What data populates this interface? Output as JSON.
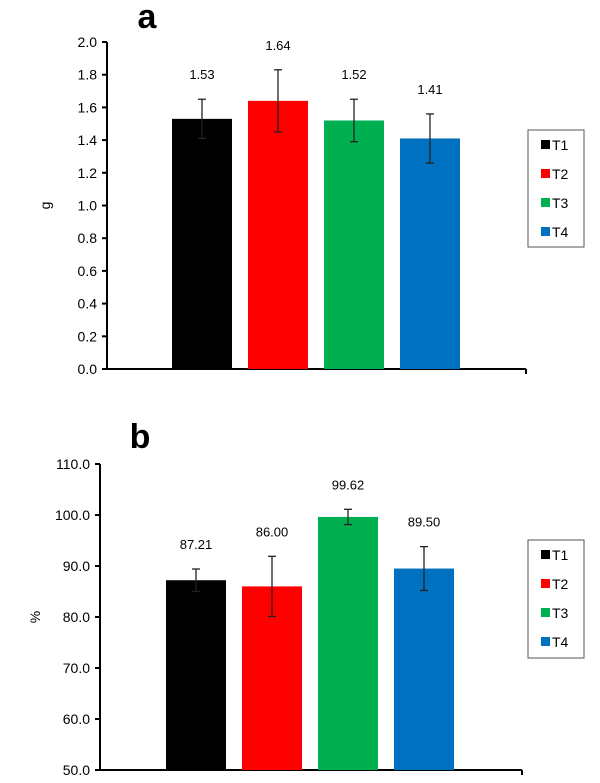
{
  "chart_data": [
    {
      "type": "bar",
      "panel_label": "a",
      "title": "",
      "xlabel": "",
      "ylabel": "g",
      "ylim": [
        0,
        2.0
      ],
      "yticks": [
        "0.0",
        "0.2",
        "0.4",
        "0.6",
        "0.8",
        "1.0",
        "1.2",
        "1.4",
        "1.6",
        "1.8",
        "2.0"
      ],
      "tick_values": [
        0,
        0.2,
        0.4,
        0.6,
        0.8,
        1.0,
        1.2,
        1.4,
        1.6,
        1.8,
        2.0
      ],
      "categories": [
        "T1",
        "T2",
        "T3",
        "T4"
      ],
      "values": [
        1.53,
        1.64,
        1.52,
        1.41
      ],
      "value_labels": [
        "1.53",
        "1.64",
        "1.52",
        "1.41"
      ],
      "errors": [
        0.12,
        0.19,
        0.13,
        0.15
      ],
      "colors": [
        "#000000",
        "#ff0000",
        "#00b050",
        "#0070c0"
      ],
      "legend": {
        "placement": "right",
        "entries": [
          "T1",
          "T2",
          "T3",
          "T4"
        ]
      },
      "grid": false
    },
    {
      "type": "bar",
      "panel_label": "b",
      "title": "",
      "xlabel": "",
      "ylabel": "%",
      "ylim": [
        50,
        110
      ],
      "yticks": [
        "50.0",
        "60.0",
        "70.0",
        "80.0",
        "90.0",
        "100.0",
        "110.0"
      ],
      "tick_values": [
        50,
        60,
        70,
        80,
        90,
        100,
        110
      ],
      "categories": [
        "T1",
        "T2",
        "T3",
        "T4"
      ],
      "values": [
        87.21,
        86.0,
        99.62,
        89.5
      ],
      "value_labels": [
        "87.21",
        "86.00",
        "99.62",
        "89.50"
      ],
      "errors": [
        2.2,
        5.9,
        1.5,
        4.3
      ],
      "colors": [
        "#000000",
        "#ff0000",
        "#00b050",
        "#0070c0"
      ],
      "legend": {
        "placement": "right",
        "entries": [
          "T1",
          "T2",
          "T3",
          "T4"
        ]
      },
      "grid": false
    }
  ]
}
